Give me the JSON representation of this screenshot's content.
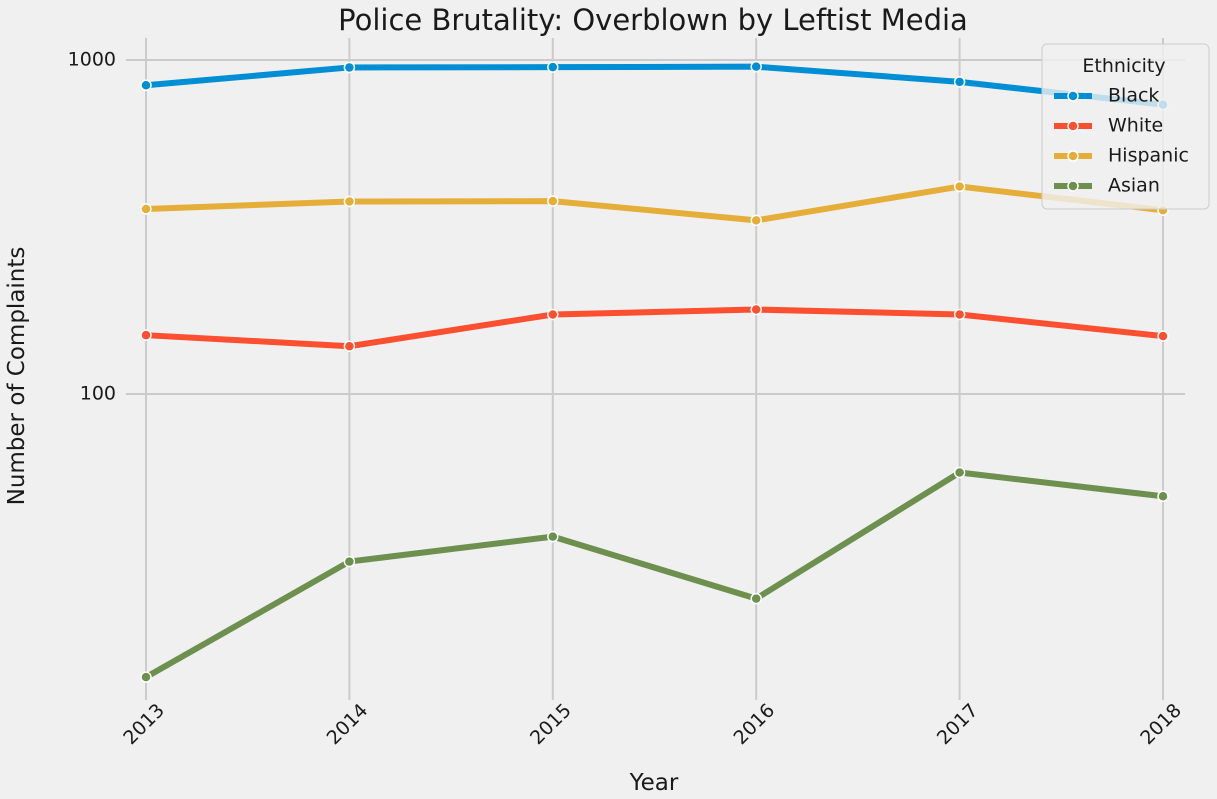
{
  "chart_data": {
    "type": "line",
    "title": "Police Brutality: Overblown by Leftist Media",
    "xlabel": "Year",
    "ylabel": "Number of Complaints",
    "yscale": "log",
    "ylim": [
      14,
      1210
    ],
    "ytick_values": [
      100,
      1000
    ],
    "ytick_labels": [
      "100",
      "1000"
    ],
    "categories": [
      "2013",
      "2014",
      "2015",
      "2016",
      "2017",
      "2018"
    ],
    "grid": true,
    "legend": {
      "title": "Ethnicity",
      "placement": "top-right"
    },
    "series": [
      {
        "name": "Black",
        "color": "#008fd5",
        "values": [
          840,
          950,
          952,
          955,
          860,
          735
        ]
      },
      {
        "name": "White",
        "color": "#fc4f30",
        "values": [
          150,
          139,
          173,
          179,
          173,
          149
        ]
      },
      {
        "name": "Hispanic",
        "color": "#e5ae38",
        "values": [
          358,
          377,
          378,
          331,
          418,
          355
        ]
      },
      {
        "name": "Asian",
        "color": "#6d904f",
        "values": [
          14.2,
          31.5,
          37.4,
          24.4,
          58.2,
          49.4
        ]
      }
    ]
  }
}
